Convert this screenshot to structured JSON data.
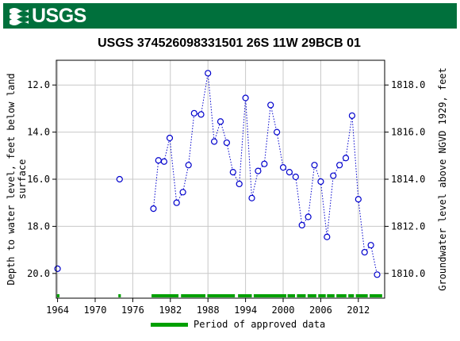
{
  "header": {
    "logo_text": "USGS",
    "brand_color": "#00703c"
  },
  "chart_data": {
    "type": "scatter",
    "title": "USGS 374526098331501 26S 11W 29BCB 01",
    "ylabel_left": "Depth to water level, feet below land surface",
    "ylabel_left_lines": [
      "Depth to water level, feet below land",
      "surface"
    ],
    "ylabel_right": "Groundwater level above NGVD 1929, feet",
    "xlim": [
      1963.8,
      2016.2
    ],
    "ylim_left": [
      21.05,
      10.95
    ],
    "ylim_right": [
      1808.95,
      1819.05
    ],
    "y_inverted": true,
    "x_ticks": [
      "1964",
      "1970",
      "1976",
      "1982",
      "1988",
      "1994",
      "2000",
      "2006",
      "2012"
    ],
    "y_ticks_left": [
      "12.0",
      "14.0",
      "16.0",
      "18.0",
      "20.0"
    ],
    "y_ticks_right": [
      "1818.0",
      "1816.0",
      "1814.0",
      "1812.0",
      "1810.0"
    ],
    "grid": true,
    "marker_color": "#0000cc",
    "approved_color": "#00a000",
    "series": [
      {
        "x": [
          1964.0,
          1973.9,
          1979.3,
          1980.1,
          1981.0,
          1981.9,
          1983.0,
          1984.0,
          1984.9,
          1985.8,
          1986.9,
          1988.0,
          1989.0,
          1990.0,
          1991.0,
          1992.0,
          1993.0,
          1994.0,
          1995.0,
          1996.0,
          1997.0,
          1998.0,
          1999.0,
          2000.0,
          2001.0,
          2002.0,
          2003.0,
          2004.0,
          2005.0,
          2006.0,
          2007.0,
          2008.0,
          2009.0,
          2010.0,
          2011.0,
          2012.0,
          2013.0,
          2014.0,
          2015.0
        ],
        "y": [
          19.8,
          16.0,
          17.25,
          15.2,
          15.25,
          14.25,
          17.0,
          16.55,
          15.4,
          13.2,
          13.25,
          11.5,
          14.4,
          13.55,
          14.45,
          15.7,
          16.2,
          12.55,
          16.8,
          15.65,
          15.35,
          12.85,
          14.0,
          15.5,
          15.7,
          15.9,
          17.95,
          17.6,
          15.4,
          16.1,
          18.45,
          15.85,
          15.4,
          15.1,
          13.3,
          16.85,
          19.1,
          18.8,
          20.05
        ]
      }
    ],
    "approved_periods": [
      [
        1963.9,
        1964.3
      ],
      [
        1973.7,
        1974.1
      ],
      [
        1979.0,
        1983.3
      ],
      [
        1983.7,
        1987.6
      ],
      [
        1987.9,
        1992.3
      ],
      [
        1992.8,
        1995.0
      ],
      [
        1995.3,
        2000.5
      ],
      [
        2000.7,
        2001.9
      ],
      [
        2002.2,
        2003.6
      ],
      [
        2003.9,
        2005.3
      ],
      [
        2005.6,
        2006.8
      ],
      [
        2007.0,
        2008.2
      ],
      [
        2008.5,
        2010.1
      ],
      [
        2010.4,
        2011.3
      ],
      [
        2011.6,
        2013.5
      ],
      [
        2013.8,
        2015.8
      ]
    ],
    "legend": {
      "label": "Period of approved data",
      "placement": "bottom"
    }
  }
}
